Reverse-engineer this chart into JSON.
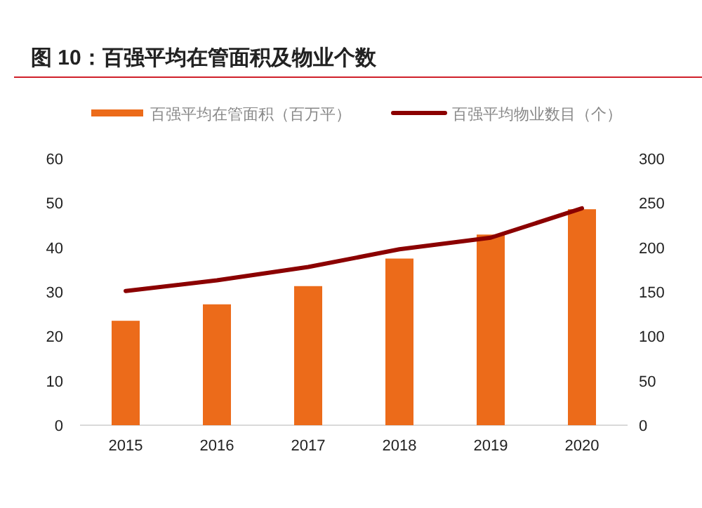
{
  "chart_data": {
    "type": "bar",
    "title": "图 10：百强平均在管面积及物业个数",
    "categories": [
      "2015",
      "2016",
      "2017",
      "2018",
      "2019",
      "2020"
    ],
    "series": [
      {
        "name": "百强平均在管面积（百万平）",
        "color": "#ec6b1a",
        "values": [
          23.5,
          27.2,
          31.3,
          37.5,
          42.9,
          48.6
        ]
      },
      {
        "name": "百强平均物业数目（个）",
        "type": "line",
        "axis": "y2",
        "color": "#8b0000",
        "values": [
          151,
          163,
          178,
          198,
          211,
          244
        ]
      }
    ],
    "ylim": [
      0,
      60
    ],
    "yticks": [
      0,
      10,
      20,
      30,
      40,
      50,
      60
    ],
    "y2lim": [
      0,
      300
    ],
    "y2ticks": [
      0,
      50,
      100,
      150,
      200,
      250,
      300
    ],
    "legend": "top",
    "grid": false
  }
}
